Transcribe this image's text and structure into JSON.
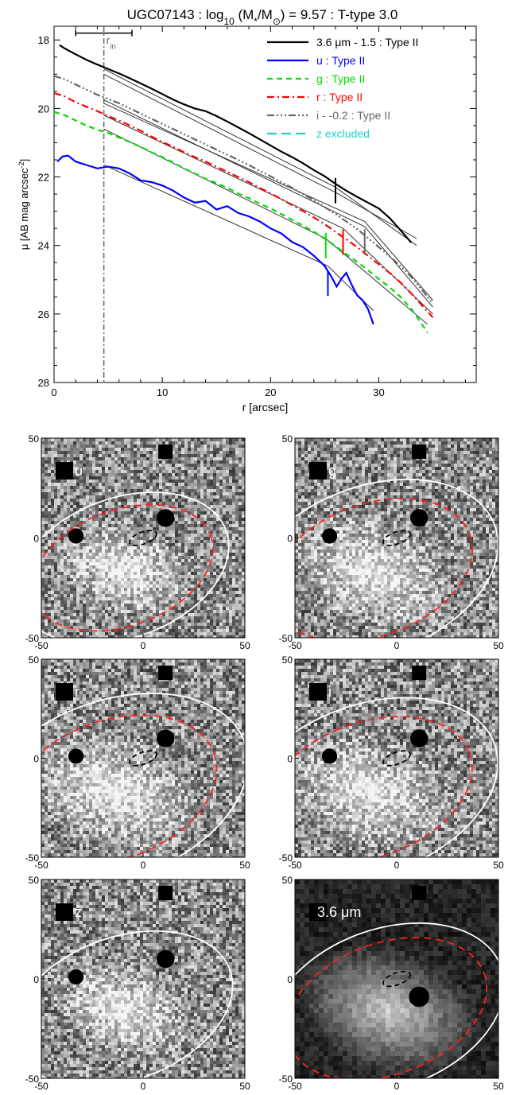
{
  "chart_data": [
    {
      "type": "line",
      "title_parts": [
        "UGC07143 : log",
        "10",
        " (M",
        "*",
        "/M",
        "⊙",
        ") = 9.57 : T-type 3.0"
      ],
      "xlabel": "r [arcsec]",
      "ylabel_parts": [
        "μ [AB mag arcsec",
        "-2",
        "]"
      ],
      "xlim": [
        0,
        39
      ],
      "ylim": [
        28,
        17.6
      ],
      "y_inverted": true,
      "xticks": [
        0,
        10,
        20,
        30
      ],
      "yticks": [
        18,
        20,
        22,
        24,
        26,
        28
      ],
      "rin_label_parts": [
        "r",
        "in"
      ],
      "rin": 4.6,
      "rin_range": [
        2.0,
        7.2
      ],
      "rin_bar_y": 17.8,
      "legend_placement": "top-right",
      "series": [
        {
          "name": "3.6 μm - 1.5 : Type II",
          "color": "#000000",
          "dash": "",
          "width": 2.2,
          "x": [
            0.5,
            1,
            2,
            3,
            4,
            5,
            6,
            7,
            8,
            9,
            10,
            11,
            12,
            13,
            14,
            15,
            16,
            17,
            18,
            19,
            20,
            21,
            22,
            23,
            24,
            25,
            26,
            27,
            28,
            29,
            30,
            31,
            32,
            33
          ],
          "y": [
            18.15,
            18.25,
            18.42,
            18.58,
            18.72,
            18.85,
            18.98,
            19.12,
            19.27,
            19.42,
            19.58,
            19.74,
            19.88,
            20.0,
            20.08,
            20.22,
            20.38,
            20.55,
            20.72,
            20.9,
            21.08,
            21.26,
            21.42,
            21.6,
            21.8,
            21.98,
            22.2,
            22.4,
            22.58,
            22.75,
            22.92,
            23.2,
            23.55,
            23.92
          ],
          "break_r": 26.0,
          "break_y": 22.4
        },
        {
          "name": "u : Type II",
          "color": "#0000ff",
          "dash": "",
          "width": 2.2,
          "x": [
            0.3,
            0.8,
            1.3,
            2,
            3,
            4,
            5,
            6,
            7,
            8,
            9,
            10,
            11,
            12,
            13,
            14,
            15,
            16,
            17,
            18,
            19,
            20,
            21,
            22,
            23,
            24,
            25,
            25.6,
            26.1,
            26.6,
            27,
            27.5,
            28,
            28.5,
            29,
            29.5
          ],
          "y": [
            21.55,
            21.4,
            21.38,
            21.55,
            21.65,
            21.75,
            21.7,
            21.75,
            21.9,
            22.1,
            22.15,
            22.25,
            22.4,
            22.6,
            22.75,
            22.7,
            22.95,
            22.85,
            23.05,
            23.15,
            23.3,
            23.5,
            23.65,
            23.9,
            24.05,
            24.3,
            24.6,
            24.9,
            25.2,
            24.95,
            24.8,
            25.15,
            25.45,
            25.6,
            25.85,
            26.3
          ],
          "break_r": 25.3,
          "break_y": 25.1
        },
        {
          "name": "g : Type II",
          "color": "#00dd00",
          "dash": "7,5",
          "width": 2.2,
          "x": [
            0,
            1,
            2,
            3,
            4,
            5,
            6,
            7,
            8,
            9,
            10,
            11,
            12,
            13,
            14,
            15,
            16,
            17,
            18,
            19,
            20,
            21,
            22,
            23,
            24,
            25,
            26,
            27,
            28,
            29,
            30,
            31,
            32,
            33,
            34,
            34.5
          ],
          "y": [
            20.1,
            20.2,
            20.35,
            20.5,
            20.62,
            20.72,
            20.85,
            20.98,
            21.12,
            21.28,
            21.42,
            21.58,
            21.75,
            21.9,
            22.05,
            22.18,
            22.32,
            22.48,
            22.62,
            22.78,
            22.92,
            23.08,
            23.25,
            23.42,
            23.6,
            23.8,
            24.02,
            24.25,
            24.48,
            24.72,
            24.98,
            25.22,
            25.5,
            25.85,
            26.3,
            26.55
          ],
          "break_r": 25.1,
          "break_y": 24.0
        },
        {
          "name": "r : Type II",
          "color": "#ff0000",
          "dash": "9,4,2,4",
          "width": 2.2,
          "x": [
            0,
            1,
            2,
            3,
            4,
            5,
            6,
            7,
            8,
            9,
            10,
            11,
            12,
            13,
            14,
            15,
            16,
            17,
            18,
            19,
            20,
            21,
            22,
            23,
            24,
            25,
            26,
            27,
            28,
            29,
            30,
            31,
            32,
            33,
            34,
            35
          ],
          "y": [
            19.55,
            19.65,
            19.82,
            19.95,
            20.08,
            20.22,
            20.35,
            20.5,
            20.65,
            20.82,
            20.98,
            21.12,
            21.28,
            21.42,
            21.55,
            21.7,
            21.85,
            22.0,
            22.15,
            22.32,
            22.48,
            22.65,
            22.82,
            23.0,
            23.18,
            23.38,
            23.6,
            23.82,
            24.05,
            24.3,
            24.55,
            24.8,
            25.08,
            25.4,
            25.75,
            26.1
          ],
          "break_r": 26.7,
          "break_y": 23.9
        },
        {
          "name": "i - -0.2 : Type II",
          "color": "#666666",
          "dash": "9,3,2,3,2,3,2,3",
          "width": 2.2,
          "x": [
            0,
            1,
            2,
            3,
            4,
            5,
            6,
            7,
            8,
            9,
            10,
            11,
            12,
            13,
            14,
            15,
            16,
            17,
            18,
            19,
            20,
            21,
            22,
            23,
            24,
            25,
            26,
            27,
            28,
            29,
            30,
            31,
            32,
            33,
            34,
            35
          ],
          "y": [
            19.05,
            19.15,
            19.3,
            19.45,
            19.6,
            19.72,
            19.85,
            20.0,
            20.15,
            20.3,
            20.45,
            20.6,
            20.75,
            20.9,
            21.05,
            21.2,
            21.35,
            21.5,
            21.65,
            21.82,
            21.98,
            22.15,
            22.32,
            22.5,
            22.68,
            22.88,
            23.08,
            23.3,
            23.52,
            23.78,
            24.05,
            24.32,
            24.6,
            24.92,
            25.3,
            25.7
          ],
          "break_r": 28.7,
          "break_y": 23.9
        },
        {
          "name": "z excluded",
          "color": "#22cccc",
          "dash": "12,6",
          "width": 2.2,
          "x": [],
          "y": []
        }
      ],
      "fits": [
        {
          "x": [
            4.6,
            26.0,
            33.5
          ],
          "y": [
            19.0,
            22.45,
            23.8
          ]
        },
        {
          "x": [
            4.6,
            26.0,
            33.5
          ],
          "y": [
            18.85,
            22.3,
            24.0
          ]
        },
        {
          "x": [
            4.6,
            25.3,
            29.5
          ],
          "y": [
            21.65,
            24.6,
            25.9
          ]
        },
        {
          "x": [
            4.6,
            25.1,
            34.5
          ],
          "y": [
            20.6,
            23.8,
            26.3
          ]
        },
        {
          "x": [
            4.6,
            26.7,
            35.0
          ],
          "y": [
            20.2,
            23.5,
            26.0
          ]
        },
        {
          "x": [
            4.6,
            28.7,
            35.0
          ],
          "y": [
            19.85,
            23.3,
            25.6
          ]
        },
        {
          "x": [
            4.6,
            28.7,
            35.0
          ],
          "y": [
            19.75,
            23.45,
            25.8
          ]
        }
      ]
    },
    {
      "type": "image",
      "panels": [
        {
          "label": "u",
          "style": "noise",
          "dashed": true,
          "white": [
            -10,
            -15,
            54,
            35,
            -20
          ],
          "red": [
            -10,
            -15,
            46,
            29,
            -20
          ],
          "stars": [
            [
              -33,
              1,
              6
            ],
            [
              11,
              10,
              7
            ]
          ]
        },
        {
          "label": "g",
          "style": "noise",
          "dashed": true,
          "white": [
            -12,
            -16,
            64,
            42,
            -20
          ],
          "red": [
            -12,
            -16,
            51,
            33,
            -20
          ],
          "stars": [
            [
              -33,
              1,
              6
            ],
            [
              11,
              10,
              7
            ]
          ]
        },
        {
          "label": "r",
          "style": "noise",
          "dashed": true,
          "white": [
            -15,
            -16,
            69,
            45,
            -20
          ],
          "red": [
            -15,
            -16,
            53,
            35,
            -20
          ],
          "stars": [
            [
              -33,
              1,
              6
            ],
            [
              11,
              10,
              7
            ]
          ]
        },
        {
          "label": "i",
          "style": "noise",
          "dashed": true,
          "white": [
            -14,
            -16,
            66,
            43,
            -20
          ],
          "red": [
            -14,
            -16,
            53,
            34,
            -20
          ],
          "stars": [
            [
              -33,
              1,
              6
            ],
            [
              11,
              10,
              7
            ]
          ]
        },
        {
          "label": "z",
          "style": "noise",
          "dashed": false,
          "white": [
            -10,
            -15,
            56,
            36,
            -20
          ],
          "red": null,
          "stars": [
            [
              -33,
              1,
              6
            ],
            [
              11,
              10,
              7
            ]
          ]
        },
        {
          "label": "3.6 μm",
          "style": "dark",
          "dashed": true,
          "white": [
            -5,
            -15,
            60,
            40,
            -20
          ],
          "red": [
            -5,
            -15,
            51,
            33,
            -20
          ],
          "stars": [
            [
              11,
              -9,
              8
            ]
          ]
        }
      ],
      "axis_ticks": [
        -50,
        0,
        50
      ],
      "xlim": [
        -50,
        50
      ],
      "ylim": [
        -50,
        50
      ],
      "inner_ellipse": [
        0,
        0,
        7,
        3,
        -20
      ]
    }
  ]
}
